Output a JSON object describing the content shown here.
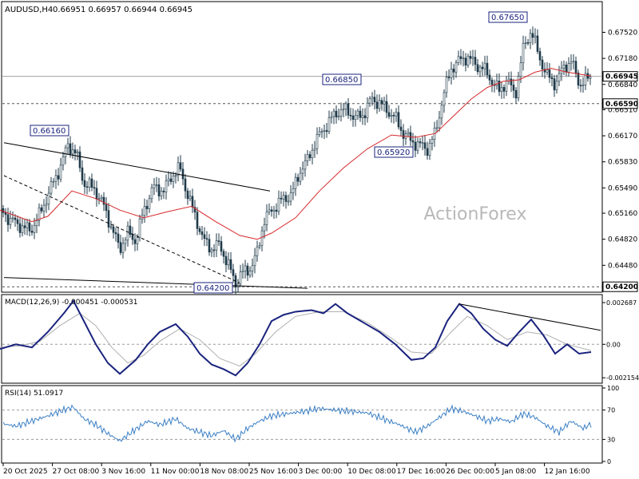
{
  "header": {
    "symbol": "AUDUSD,H4",
    "ohlc": "0.66951 0.66957 0.66944 0.66945"
  },
  "watermark": "ActionForex",
  "colors": {
    "candle": "#1f3a4a",
    "ma": "#d6282b",
    "macd": "#1a237e",
    "signal": "#b0b0b0",
    "rsi": "#3b7fc4",
    "grid": "#c8c8c8",
    "trend": "#000000",
    "bg": "#ffffff"
  },
  "price_axis": {
    "ticks": [
      "0.67520",
      "0.67180",
      "0.66840",
      "0.66510",
      "0.66170",
      "0.65830",
      "0.65490",
      "0.65160",
      "0.64820",
      "0.64480"
    ],
    "highlight_levels": [
      {
        "value": "0.66945",
        "style": "solid-gray",
        "boxed": true
      },
      {
        "value": "0.66590",
        "style": "dashed",
        "boxed": true
      },
      {
        "value": "0.64200",
        "style": "dashed",
        "boxed": true
      }
    ]
  },
  "time_axis": {
    "labels": [
      "20 Oct 2025",
      "27 Oct 08:00",
      "3 Nov 16:00",
      "11 Nov 00:00",
      "18 Nov 08:00",
      "25 Nov 16:00",
      "3 Dec 00:00",
      "10 Dec 08:00",
      "17 Dec 16:00",
      "26 Dec 00:00",
      "5 Jan 08:00",
      "12 Jan 16:00"
    ]
  },
  "annotations": [
    {
      "text": "0.66160",
      "price": 0.6616
    },
    {
      "text": "0.64200",
      "price": 0.642
    },
    {
      "text": "0.66850",
      "price": 0.6685
    },
    {
      "text": "0.65920",
      "price": 0.6592
    },
    {
      "text": "0.67650",
      "price": 0.6765
    }
  ],
  "macd": {
    "label": "MACD(12,26,9) -0.000451 -0.000531",
    "ticks": [
      "0.002687",
      "0.00",
      "-0.002154"
    ]
  },
  "rsi": {
    "label": "RSI(14) 51.0917",
    "ticks": [
      "100",
      "70",
      "30",
      "0"
    ]
  },
  "chart_data": {
    "type": "candlestick",
    "symbol": "AUDUSD",
    "timeframe": "H4",
    "ylim": [
      0.6415,
      0.679
    ],
    "close_path": [
      [
        0,
        0.6522
      ],
      [
        12,
        0.6508
      ],
      [
        25,
        0.65
      ],
      [
        38,
        0.6493
      ],
      [
        50,
        0.6515
      ],
      [
        62,
        0.6545
      ],
      [
        75,
        0.6575
      ],
      [
        85,
        0.6605
      ],
      [
        95,
        0.6595
      ],
      [
        105,
        0.6555
      ],
      [
        118,
        0.6548
      ],
      [
        130,
        0.6525
      ],
      [
        142,
        0.649
      ],
      [
        150,
        0.647
      ],
      [
        160,
        0.649
      ],
      [
        170,
        0.648
      ],
      [
        180,
        0.652
      ],
      [
        192,
        0.655
      ],
      [
        205,
        0.6545
      ],
      [
        215,
        0.6565
      ],
      [
        225,
        0.6575
      ],
      [
        235,
        0.654
      ],
      [
        245,
        0.651
      ],
      [
        255,
        0.648
      ],
      [
        265,
        0.647
      ],
      [
        275,
        0.6475
      ],
      [
        285,
        0.645
      ],
      [
        295,
        0.6425
      ],
      [
        305,
        0.644
      ],
      [
        315,
        0.6445
      ],
      [
        322,
        0.6465
      ],
      [
        330,
        0.6505
      ],
      [
        340,
        0.652
      ],
      [
        355,
        0.6535
      ],
      [
        365,
        0.654
      ],
      [
        375,
        0.657
      ],
      [
        385,
        0.6585
      ],
      [
        395,
        0.661
      ],
      [
        405,
        0.6625
      ],
      [
        415,
        0.664
      ],
      [
        425,
        0.665
      ],
      [
        435,
        0.665
      ],
      [
        445,
        0.664
      ],
      [
        455,
        0.6645
      ],
      [
        465,
        0.6665
      ],
      [
        475,
        0.666
      ],
      [
        485,
        0.665
      ],
      [
        495,
        0.664
      ],
      [
        505,
        0.662
      ],
      [
        515,
        0.661
      ],
      [
        525,
        0.6605
      ],
      [
        535,
        0.66
      ],
      [
        545,
        0.662
      ],
      [
        555,
        0.667
      ],
      [
        565,
        0.6705
      ],
      [
        575,
        0.6715
      ],
      [
        585,
        0.672
      ],
      [
        595,
        0.671
      ],
      [
        605,
        0.6705
      ],
      [
        615,
        0.669
      ],
      [
        625,
        0.6675
      ],
      [
        635,
        0.669
      ],
      [
        645,
        0.667
      ],
      [
        655,
        0.673
      ],
      [
        665,
        0.6755
      ],
      [
        675,
        0.672
      ],
      [
        685,
        0.6695
      ],
      [
        695,
        0.6685
      ],
      [
        705,
        0.6705
      ],
      [
        715,
        0.6715
      ],
      [
        725,
        0.6685
      ],
      [
        735,
        0.669
      ],
      [
        740,
        0.66945
      ]
    ],
    "moving_average": [
      [
        0,
        0.652
      ],
      [
        40,
        0.6505
      ],
      [
        60,
        0.6512
      ],
      [
        90,
        0.6545
      ],
      [
        120,
        0.6535
      ],
      [
        150,
        0.652
      ],
      [
        180,
        0.651
      ],
      [
        210,
        0.6518
      ],
      [
        240,
        0.6525
      ],
      [
        270,
        0.6505
      ],
      [
        300,
        0.6487
      ],
      [
        322,
        0.6482
      ],
      [
        340,
        0.649
      ],
      [
        370,
        0.651
      ],
      [
        400,
        0.6545
      ],
      [
        430,
        0.6575
      ],
      [
        460,
        0.66
      ],
      [
        490,
        0.6618
      ],
      [
        520,
        0.6615
      ],
      [
        545,
        0.662
      ],
      [
        565,
        0.664
      ],
      [
        590,
        0.6665
      ],
      [
        610,
        0.668
      ],
      [
        630,
        0.6688
      ],
      [
        650,
        0.669
      ],
      [
        670,
        0.67
      ],
      [
        690,
        0.6705
      ],
      [
        710,
        0.67
      ],
      [
        740,
        0.6695
      ]
    ],
    "trendlines_price": [
      {
        "from": [
          5,
          0.6608
        ],
        "to": [
          338,
          0.6545
        ],
        "style": "solid"
      },
      {
        "from": [
          5,
          0.6565
        ],
        "to": [
          300,
          0.6425
        ],
        "style": "dashed"
      },
      {
        "from": [
          5,
          0.6432
        ],
        "to": [
          385,
          0.6418
        ],
        "style": "solid"
      }
    ],
    "macd_series": {
      "ylim": [
        -0.0024,
        0.0031
      ],
      "macd": [
        [
          0,
          -0.0003
        ],
        [
          20,
          0.0
        ],
        [
          40,
          -0.0002
        ],
        [
          60,
          0.0008
        ],
        [
          80,
          0.002
        ],
        [
          92,
          0.0028
        ],
        [
          105,
          0.0015
        ],
        [
          120,
          0.0
        ],
        [
          135,
          -0.0012
        ],
        [
          150,
          -0.0019
        ],
        [
          170,
          -0.001
        ],
        [
          185,
          0.0
        ],
        [
          200,
          0.0008
        ],
        [
          220,
          0.0013
        ],
        [
          235,
          0.0005
        ],
        [
          250,
          -0.0006
        ],
        [
          265,
          -0.0013
        ],
        [
          280,
          -0.0016
        ],
        [
          295,
          -0.002
        ],
        [
          310,
          -0.0012
        ],
        [
          325,
          0.0
        ],
        [
          340,
          0.0015
        ],
        [
          355,
          0.0019
        ],
        [
          370,
          0.0021
        ],
        [
          390,
          0.0022
        ],
        [
          405,
          0.002
        ],
        [
          420,
          0.0026
        ],
        [
          435,
          0.002
        ],
        [
          455,
          0.0014
        ],
        [
          475,
          0.0008
        ],
        [
          495,
          0.0
        ],
        [
          515,
          -0.001
        ],
        [
          530,
          -0.0009
        ],
        [
          545,
          -0.0002
        ],
        [
          560,
          0.0015
        ],
        [
          575,
          0.0026
        ],
        [
          590,
          0.002
        ],
        [
          605,
          0.001
        ],
        [
          620,
          0.0003
        ],
        [
          635,
          -0.0001
        ],
        [
          650,
          0.0008
        ],
        [
          665,
          0.0016
        ],
        [
          680,
          0.0006
        ],
        [
          695,
          -0.0006
        ],
        [
          710,
          0.0
        ],
        [
          725,
          -0.0006
        ],
        [
          740,
          -0.0005
        ]
      ],
      "signal": [
        [
          0,
          -0.0002
        ],
        [
          25,
          -0.0001
        ],
        [
          50,
          0.0002
        ],
        [
          75,
          0.0012
        ],
        [
          100,
          0.002
        ],
        [
          120,
          0.0012
        ],
        [
          140,
          -0.0002
        ],
        [
          160,
          -0.0012
        ],
        [
          180,
          -0.0007
        ],
        [
          200,
          0.0002
        ],
        [
          225,
          0.001
        ],
        [
          250,
          0.0003
        ],
        [
          275,
          -0.0009
        ],
        [
          300,
          -0.0014
        ],
        [
          320,
          -0.0006
        ],
        [
          345,
          0.0008
        ],
        [
          370,
          0.0018
        ],
        [
          400,
          0.0021
        ],
        [
          430,
          0.0021
        ],
        [
          460,
          0.0014
        ],
        [
          490,
          0.0004
        ],
        [
          515,
          -0.0005
        ],
        [
          540,
          -0.0006
        ],
        [
          565,
          0.0008
        ],
        [
          585,
          0.0018
        ],
        [
          610,
          0.0012
        ],
        [
          635,
          0.0003
        ],
        [
          660,
          0.0008
        ],
        [
          685,
          0.0006
        ],
        [
          710,
          0.0
        ],
        [
          740,
          -0.0004
        ]
      ],
      "trendline": {
        "from": [
          575,
          0.0026
        ],
        "to": [
          752,
          0.0009
        ]
      }
    },
    "rsi_series": {
      "ylim": [
        0,
        100
      ],
      "levels": [
        70,
        30
      ],
      "values": [
        [
          0,
          52
        ],
        [
          20,
          48
        ],
        [
          40,
          55
        ],
        [
          60,
          62
        ],
        [
          80,
          70
        ],
        [
          92,
          74
        ],
        [
          105,
          58
        ],
        [
          120,
          50
        ],
        [
          135,
          38
        ],
        [
          150,
          28
        ],
        [
          165,
          40
        ],
        [
          185,
          55
        ],
        [
          200,
          50
        ],
        [
          220,
          58
        ],
        [
          235,
          45
        ],
        [
          250,
          40
        ],
        [
          265,
          35
        ],
        [
          280,
          42
        ],
        [
          295,
          30
        ],
        [
          310,
          45
        ],
        [
          325,
          55
        ],
        [
          340,
          62
        ],
        [
          360,
          65
        ],
        [
          380,
          68
        ],
        [
          400,
          72
        ],
        [
          420,
          70
        ],
        [
          440,
          68
        ],
        [
          460,
          66
        ],
        [
          480,
          58
        ],
        [
          500,
          50
        ],
        [
          520,
          40
        ],
        [
          535,
          48
        ],
        [
          550,
          60
        ],
        [
          565,
          72
        ],
        [
          580,
          68
        ],
        [
          595,
          62
        ],
        [
          610,
          55
        ],
        [
          625,
          58
        ],
        [
          640,
          54
        ],
        [
          655,
          65
        ],
        [
          670,
          60
        ],
        [
          685,
          48
        ],
        [
          700,
          40
        ],
        [
          715,
          55
        ],
        [
          730,
          45
        ],
        [
          740,
          51
        ]
      ]
    }
  }
}
